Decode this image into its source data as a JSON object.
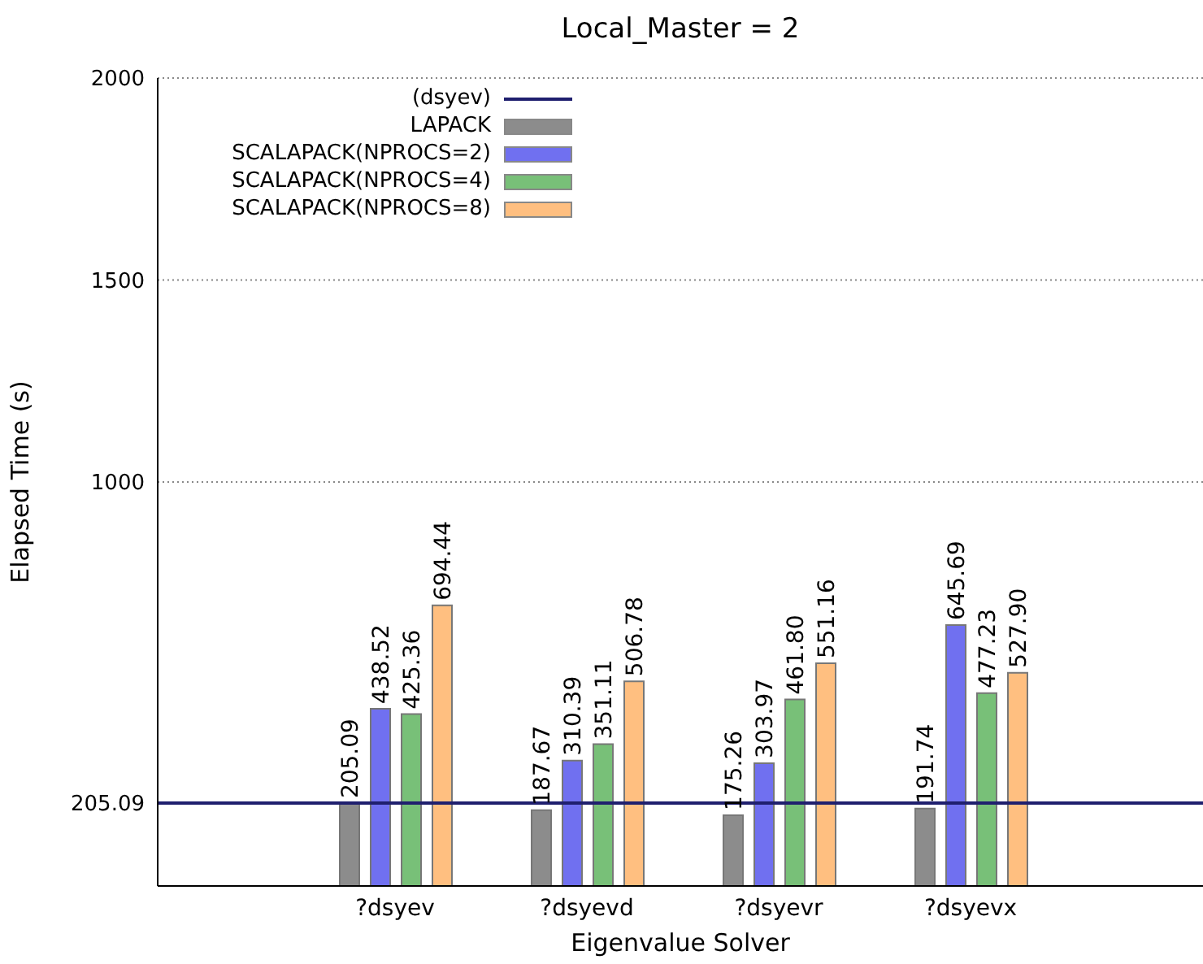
{
  "chart_data": {
    "type": "bar",
    "title": "Local_Master = 2",
    "xlabel": "Eigenvalue Solver",
    "ylabel": "Elapsed Time (s)",
    "categories": [
      "?dsyev",
      "?dsyevd",
      "?dsyevr",
      "?dsyevx"
    ],
    "series": [
      {
        "name": "LAPACK",
        "color": "#8c8c8c",
        "values": [
          205.09,
          187.67,
          175.26,
          191.74
        ]
      },
      {
        "name": "SCALAPACK(NPROCS=2)",
        "color": "#7070f0",
        "values": [
          438.52,
          310.39,
          303.97,
          645.69
        ]
      },
      {
        "name": "SCALAPACK(NPROCS=4)",
        "color": "#78c078",
        "values": [
          425.36,
          351.11,
          461.8,
          477.23
        ],
        "value_labels": [
          "425.36",
          "351.11",
          "461.80",
          "477.23"
        ]
      },
      {
        "name": "SCALAPACK(NPROCS=8)",
        "color": "#ffbf80",
        "values": [
          694.44,
          506.78,
          551.16,
          527.9
        ],
        "value_labels": [
          "694.44",
          "506.78",
          "551.16",
          "527.90"
        ]
      }
    ],
    "ref_lines": [
      {
        "axis": "y",
        "value": 205.09,
        "label": "(dsyev)",
        "color": "#1f1f6e"
      }
    ],
    "ylim": [
      0,
      2000
    ],
    "yticks": [
      {
        "value": 205.09,
        "label": "205.09"
      },
      1000,
      1500,
      2000
    ],
    "grid": "y",
    "legend": "top left",
    "data_labels": true
  }
}
